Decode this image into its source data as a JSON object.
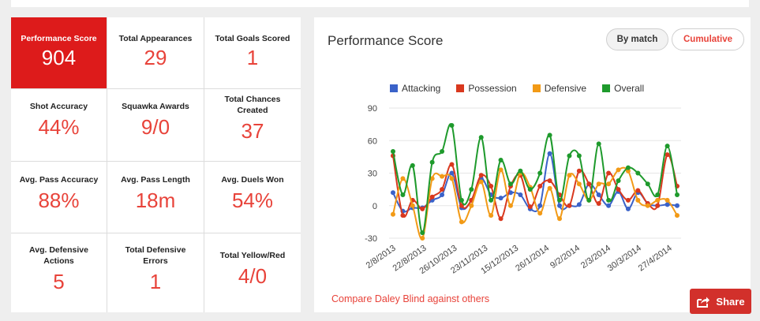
{
  "stats": [
    {
      "label": "Performance Score",
      "value": "904"
    },
    {
      "label": "Total Appearances",
      "value": "29"
    },
    {
      "label": "Total Goals Scored",
      "value": "1"
    },
    {
      "label": "Shot Accuracy",
      "value": "44%"
    },
    {
      "label": "Squawka Awards",
      "value": "9/0"
    },
    {
      "label": "Total Chances Created",
      "value": "37"
    },
    {
      "label": "Avg. Pass Accuracy",
      "value": "88%"
    },
    {
      "label": "Avg. Pass Length",
      "value": "18m"
    },
    {
      "label": "Avg. Duels Won",
      "value": "54%"
    },
    {
      "label": "Avg. Defensive Actions",
      "value": "5"
    },
    {
      "label": "Total Defensive Errors",
      "value": "1"
    },
    {
      "label": "Total Yellow/Red",
      "value": "4/0"
    }
  ],
  "chart_panel": {
    "title": "Performance Score",
    "toggle_by_match": "By match",
    "toggle_cumulative": "Cumulative",
    "compare_link": "Compare Daley Blind against others",
    "share_label": "Share"
  },
  "colors": {
    "accent": "#e8433a",
    "highlight": "#dd1b1b",
    "share": "#d2302b"
  },
  "chart_data": {
    "type": "line",
    "title": "",
    "xlabel": "",
    "ylabel": "",
    "ylim": [
      -30,
      90
    ],
    "yticks": [
      90,
      60,
      30,
      0,
      -30
    ],
    "x_tick_labels": [
      "2/8/2013",
      "22/8/2013",
      "26/10/2013",
      "23/11/2013",
      "15/12/2013",
      "26/1/2014",
      "9/2/2014",
      "2/3/2014",
      "30/3/2014",
      "27/4/2014"
    ],
    "grid": true,
    "legend_position": "top",
    "series": [
      {
        "name": "Attacking",
        "color": "#3a62c9",
        "values": [
          12,
          -5,
          -2,
          -2,
          5,
          10,
          30,
          -2,
          5,
          25,
          10,
          7,
          12,
          10,
          -3,
          0,
          48,
          0,
          0,
          1,
          20,
          10,
          0,
          13,
          -3,
          12,
          2,
          0,
          1,
          0
        ]
      },
      {
        "name": "Possession",
        "color": "#d9381e",
        "values": [
          46,
          -9,
          5,
          -3,
          8,
          15,
          38,
          0,
          5,
          28,
          18,
          -12,
          18,
          28,
          -1,
          18,
          23,
          10,
          0,
          32,
          20,
          2,
          30,
          15,
          5,
          14,
          2,
          0,
          47,
          18
        ]
      },
      {
        "name": "Defensive",
        "color": "#f29a16",
        "values": [
          -8,
          25,
          0,
          -30,
          25,
          27,
          25,
          -15,
          0,
          22,
          -9,
          33,
          0,
          30,
          17,
          -7,
          16,
          -12,
          28,
          20,
          5,
          20,
          20,
          33,
          32,
          5,
          0,
          5,
          5,
          -9
        ]
      },
      {
        "name": "Overall",
        "color": "#1e9a2c",
        "values": [
          50,
          10,
          37,
          -25,
          40,
          50,
          74,
          5,
          15,
          63,
          5,
          42,
          20,
          32,
          15,
          30,
          65,
          5,
          46,
          46,
          5,
          57,
          5,
          23,
          35,
          30,
          20,
          10,
          55,
          10
        ]
      }
    ]
  }
}
